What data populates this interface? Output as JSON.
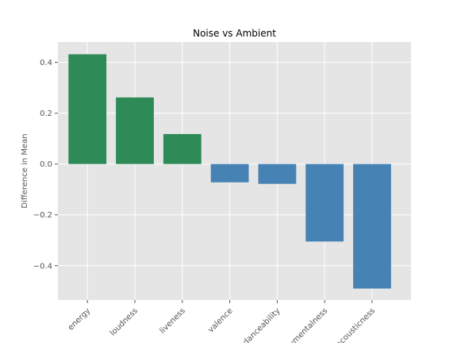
{
  "chart_data": {
    "type": "bar",
    "title": "Noise vs Ambient",
    "xlabel": "",
    "ylabel": "Difference in Mean",
    "categories": [
      "energy",
      "loudness",
      "liveness",
      "valence",
      "danceability",
      "instrumentalness",
      "acousticness"
    ],
    "values": [
      0.432,
      0.262,
      0.118,
      -0.072,
      -0.078,
      -0.305,
      -0.49
    ],
    "ylim": [
      -0.535,
      0.48
    ],
    "yticks": [
      0.4,
      0.2,
      0.0,
      -0.2,
      -0.4
    ],
    "ytick_labels": [
      "0.4",
      "0.2",
      "0.0",
      "−0.2",
      "−0.4"
    ],
    "grid": true,
    "legend": "none",
    "colors": {
      "positive": "#2e8b57",
      "negative": "#4682b4",
      "plot_background": "#e5e5e5",
      "grid": "#ffffff",
      "text": "#555555",
      "title": "#000000"
    }
  }
}
